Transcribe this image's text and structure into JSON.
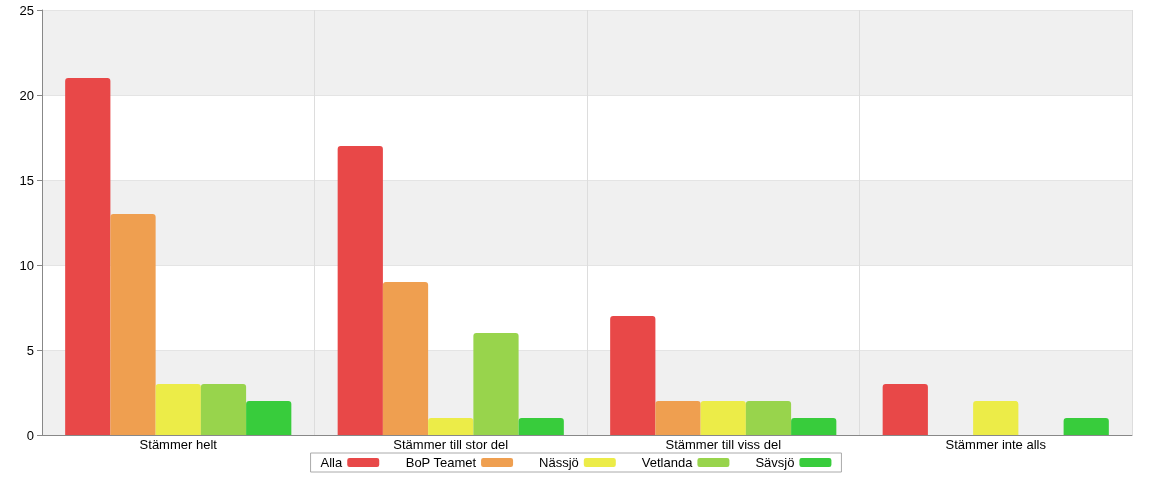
{
  "chart_data": {
    "type": "bar",
    "categories": [
      "Stämmer helt",
      "Stämmer till stor del",
      "Stämmer till viss del",
      "Stämmer inte alls"
    ],
    "series": [
      {
        "name": "Alla",
        "color": "#e84848",
        "values": [
          21,
          17,
          7,
          3
        ]
      },
      {
        "name": "BoP Teamet",
        "color": "#ef9f50",
        "values": [
          13,
          9,
          2,
          0
        ]
      },
      {
        "name": "Nässjö",
        "color": "#ecec48",
        "values": [
          3,
          1,
          2,
          2
        ]
      },
      {
        "name": "Vetlanda",
        "color": "#98d44c",
        "values": [
          3,
          6,
          2,
          0
        ]
      },
      {
        "name": "Sävsjö",
        "color": "#38cc3c",
        "values": [
          2,
          1,
          1,
          1
        ]
      }
    ],
    "ylim": [
      0,
      25
    ],
    "yticks": [
      0,
      5,
      10,
      15,
      20,
      25
    ],
    "grid": true,
    "legend": "bottom"
  }
}
